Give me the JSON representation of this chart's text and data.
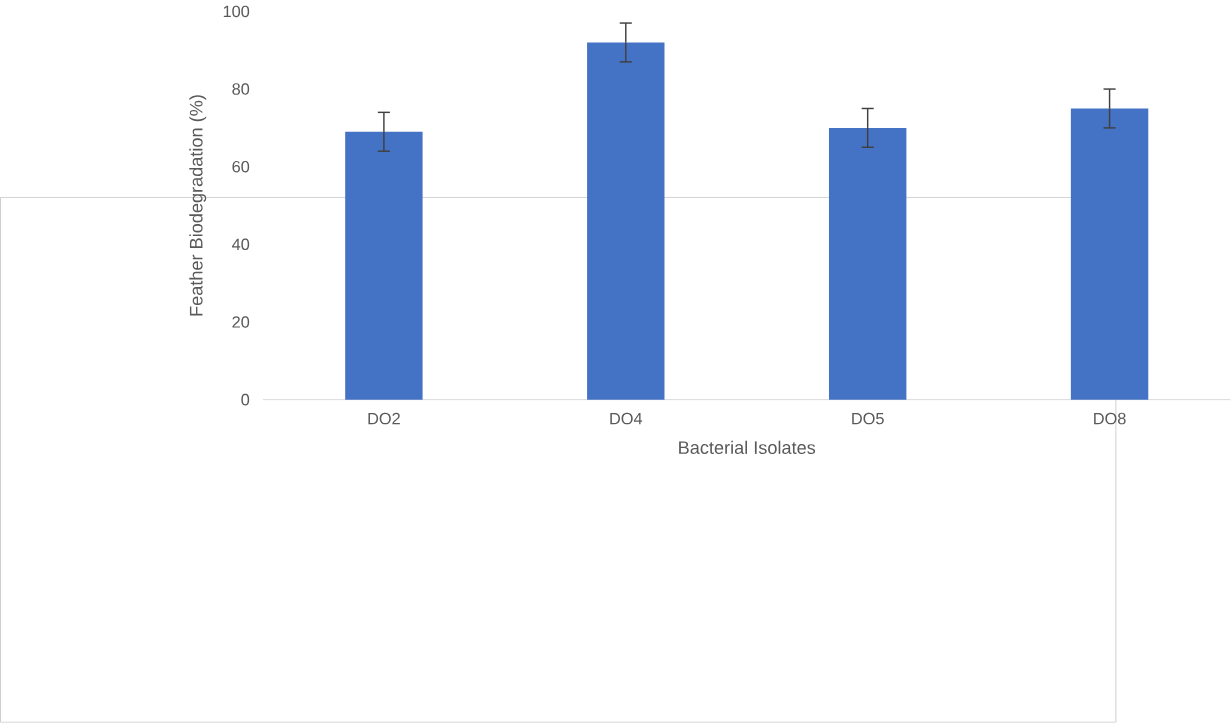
{
  "chart_data": {
    "type": "bar",
    "xlabel": "Bacterial Isolates",
    "ylabel": "Feather Biodegradation (%)",
    "categories": [
      "DO2",
      "DO4",
      "DO5",
      "DO8"
    ],
    "values": [
      69,
      92,
      70,
      75
    ],
    "errors": [
      5,
      5,
      5,
      5
    ],
    "color": "#4472c4",
    "ylim": [
      0,
      100
    ],
    "yticks": [
      0,
      20,
      40,
      60,
      80,
      100
    ],
    "grid": false
  }
}
